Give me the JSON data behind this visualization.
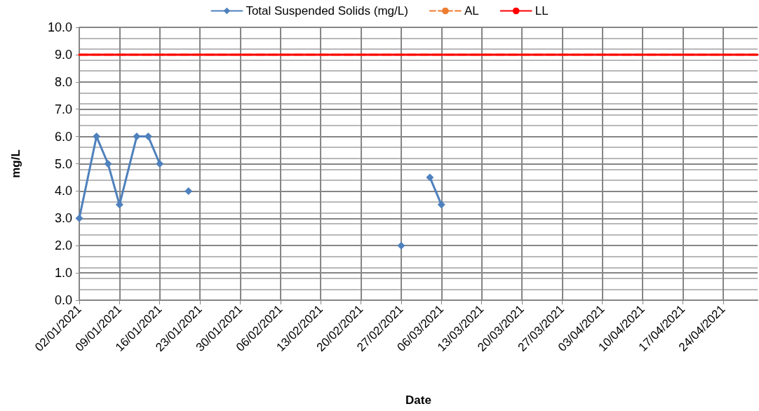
{
  "chart_data": {
    "type": "line",
    "xlabel": "Date",
    "ylabel": "mg/L",
    "xlim": [
      "2021-01-02",
      "2021-04-30"
    ],
    "xticks": [
      {
        "value": "2021-01-02",
        "label": "02/01/2021"
      },
      {
        "value": "2021-01-09",
        "label": "09/01/2021"
      },
      {
        "value": "2021-01-16",
        "label": "16/01/2021"
      },
      {
        "value": "2021-01-23",
        "label": "23/01/2021"
      },
      {
        "value": "2021-01-30",
        "label": "30/01/2021"
      },
      {
        "value": "2021-02-06",
        "label": "06/02/2021"
      },
      {
        "value": "2021-02-13",
        "label": "13/02/2021"
      },
      {
        "value": "2021-02-20",
        "label": "20/02/2021"
      },
      {
        "value": "2021-02-27",
        "label": "27/02/2021"
      },
      {
        "value": "2021-03-06",
        "label": "06/03/2021"
      },
      {
        "value": "2021-03-13",
        "label": "13/03/2021"
      },
      {
        "value": "2021-03-20",
        "label": "20/03/2021"
      },
      {
        "value": "2021-03-27",
        "label": "27/03/2021"
      },
      {
        "value": "2021-04-03",
        "label": "03/04/2021"
      },
      {
        "value": "2021-04-10",
        "label": "10/04/2021"
      },
      {
        "value": "2021-04-17",
        "label": "17/04/2021"
      },
      {
        "value": "2021-04-24",
        "label": "24/04/2021"
      }
    ],
    "ylim": [
      0,
      10
    ],
    "yticks": [
      {
        "value": 0,
        "label": "0.0"
      },
      {
        "value": 1,
        "label": "1.0"
      },
      {
        "value": 2,
        "label": "2.0"
      },
      {
        "value": 3,
        "label": "3.0"
      },
      {
        "value": 4,
        "label": "4.0"
      },
      {
        "value": 5,
        "label": "5.0"
      },
      {
        "value": 6,
        "label": "6.0"
      },
      {
        "value": 7,
        "label": "7.0"
      },
      {
        "value": 8,
        "label": "8.0"
      },
      {
        "value": 9,
        "label": "9.0"
      },
      {
        "value": 10,
        "label": "10.0"
      }
    ],
    "grid": true,
    "legend": "top",
    "series": [
      {
        "name": "Total Suspended Solids (mg/L)",
        "color": "#4f81bd",
        "marker": "diamond",
        "line_style": "solid",
        "x": [
          "2021-01-02",
          "2021-01-05",
          "2021-01-07",
          "2021-01-09",
          "2021-01-12",
          "2021-01-14",
          "2021-01-16",
          "2021-01-19",
          "2021-01-21",
          "2021-02-10",
          "2021-02-27",
          "2021-03-02",
          "2021-03-04",
          "2021-03-06"
        ],
        "values": [
          3,
          6,
          5,
          3.5,
          6,
          6,
          5,
          null,
          4,
          null,
          2,
          null,
          4.5,
          3.5
        ]
      },
      {
        "name": "AL",
        "color": "#ed7d31",
        "marker": "none",
        "line_style": "dashed",
        "x": [
          "2021-01-02",
          "2021-04-30"
        ],
        "values": [
          9,
          9
        ]
      },
      {
        "name": "LL",
        "color": "#ff0000",
        "marker": "none",
        "line_style": "solid",
        "x": [
          "2021-01-02",
          "2021-04-30"
        ],
        "values": [
          9,
          9
        ]
      }
    ]
  }
}
